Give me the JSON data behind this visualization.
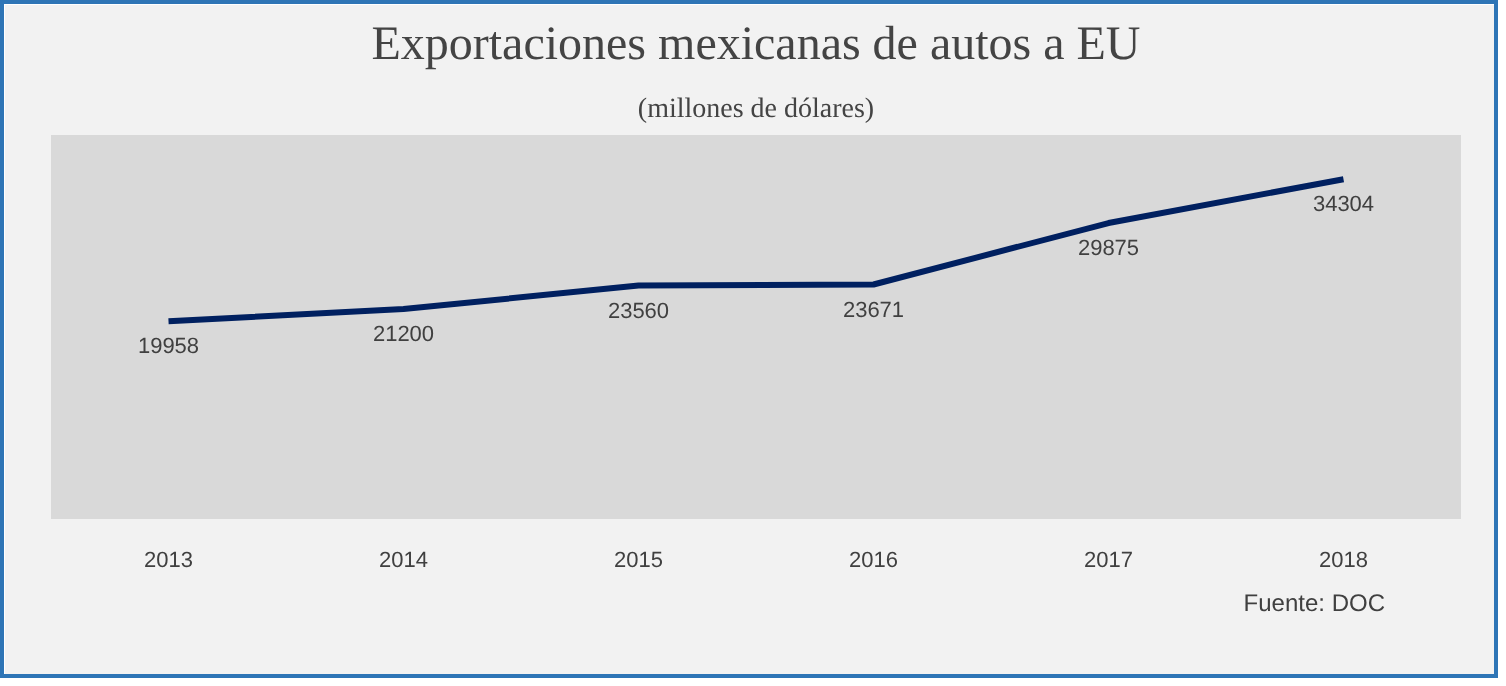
{
  "chart_data": {
    "type": "line",
    "title": "Exportaciones mexicanas de autos a EU",
    "subtitle": "(millones de dólares)",
    "categories": [
      "2013",
      "2014",
      "2015",
      "2016",
      "2017",
      "2018"
    ],
    "series": [
      {
        "color": "#002060",
        "values": [
          19958,
          21200,
          23560,
          23671,
          29875,
          34304
        ]
      }
    ],
    "data_labels": true,
    "grid": false,
    "marker": "none",
    "line_style": "solid",
    "tick_labels": "x",
    "annotations": [
      "Fuente: DOC"
    ]
  }
}
